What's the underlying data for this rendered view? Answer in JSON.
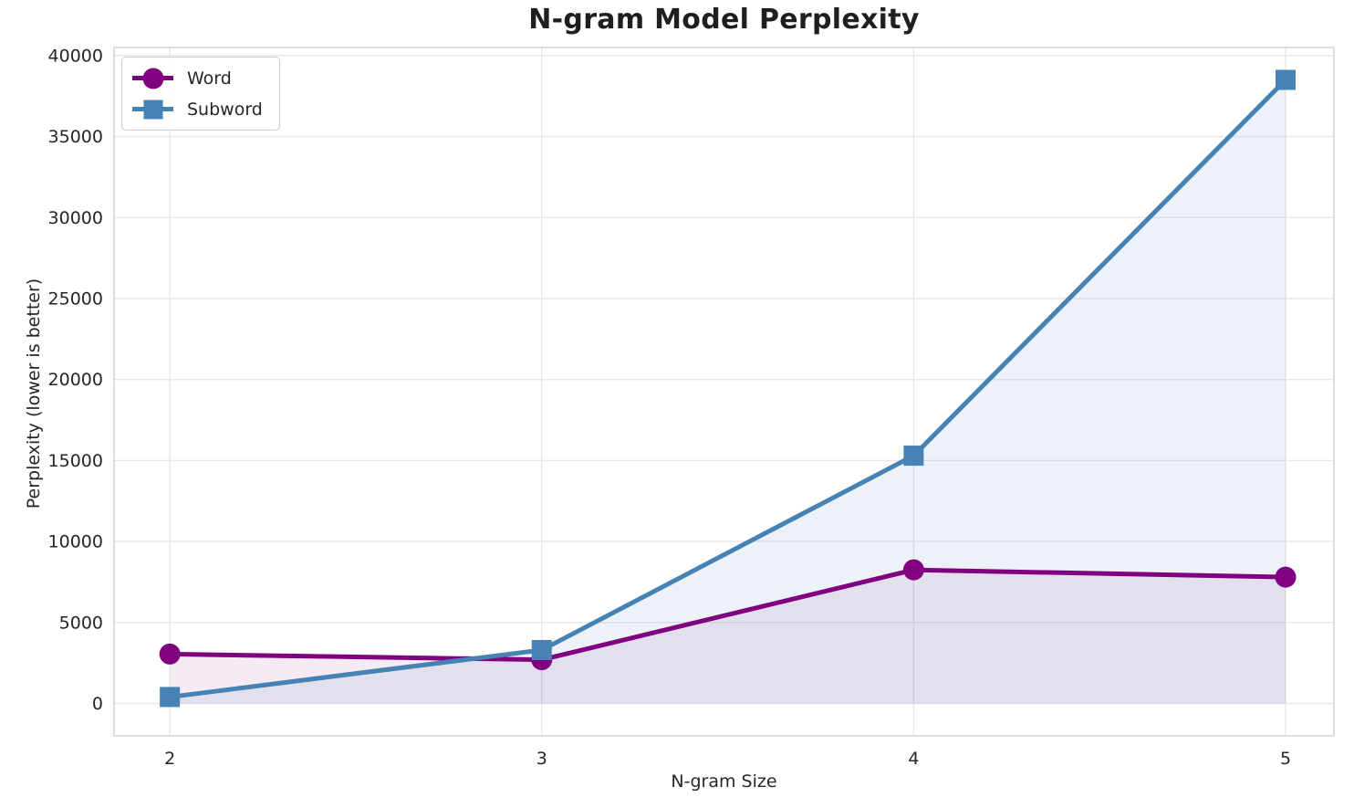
{
  "chart": {
    "title": "N-gram Model Perplexity",
    "xlabel": "N-gram Size",
    "ylabel": "Perplexity (lower is better)"
  },
  "legend": {
    "items": [
      {
        "label": "Word"
      },
      {
        "label": "Subword"
      }
    ]
  },
  "chart_data": {
    "type": "line",
    "title": "N-gram Model Perplexity",
    "xlabel": "N-gram Size",
    "ylabel": "Perplexity (lower is better)",
    "x": [
      2,
      3,
      4,
      5
    ],
    "series": [
      {
        "name": "Word",
        "marker": "circle",
        "color": "#800080",
        "fill_opacity": 0.08,
        "values": [
          3050,
          2700,
          8250,
          7800
        ]
      },
      {
        "name": "Subword",
        "marker": "square",
        "color": "#4682B4",
        "fill_opacity": 0.1,
        "values": [
          400,
          3300,
          15300,
          38500
        ]
      }
    ],
    "x_ticks": [
      2,
      3,
      4,
      5
    ],
    "y_ticks": [
      0,
      5000,
      10000,
      15000,
      20000,
      25000,
      30000,
      35000,
      40000
    ],
    "xlim": [
      1.85,
      5.13
    ],
    "ylim": [
      -2000,
      40500
    ],
    "grid": true,
    "area_fill_baseline": 0,
    "legend_position": "upper left",
    "colors": {
      "grid": "#e7e7e7",
      "spine": "#cfcfcf",
      "text": "#262626",
      "background": "#ffffff"
    }
  }
}
